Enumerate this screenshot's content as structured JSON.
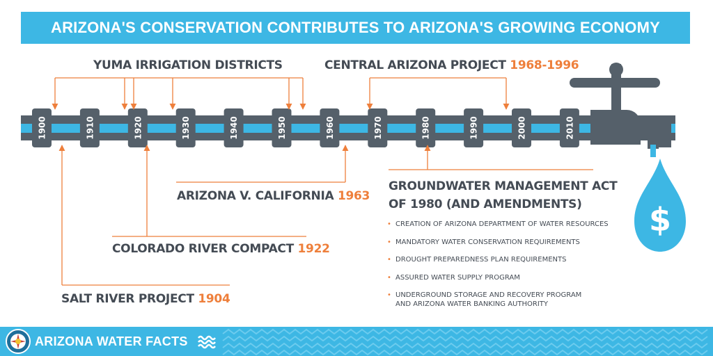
{
  "title": "ARIZONA'S CONSERVATION CONTRIBUTES TO ARIZONA'S GROWING ECONOMY",
  "decades": [
    "1900",
    "1910",
    "1920",
    "1930",
    "1940",
    "1950",
    "1960",
    "1970",
    "1980",
    "1990",
    "2000",
    "2010"
  ],
  "events": {
    "yuma": {
      "label": "YUMA IRRIGATION DISTRICTS"
    },
    "cap": {
      "label": "CENTRAL ARIZONA PROJECT ",
      "years": "1968-1996"
    },
    "az_v_ca": {
      "label": "ARIZONA V. CALIFORNIA ",
      "year": "1963"
    },
    "colorado": {
      "label": "COLORADO RIVER COMPACT ",
      "year": "1922"
    },
    "salt_river": {
      "label": "SALT RIVER PROJECT ",
      "year": "1904"
    },
    "groundwater": {
      "title_line1": "GROUNDWATER MANAGEMENT ACT",
      "title_line2": "OF 1980 (AND AMENDMENTS)",
      "items": [
        "CREATION OF ARIZONA DEPARTMENT OF WATER RESOURCES",
        "MANDATORY WATER CONSERVATION REQUIREMENTS",
        "DROUGHT PREPAREDNESS PLAN REQUIREMENTS",
        "ASSURED WATER SUPPLY PROGRAM",
        "UNDERGROUND STORAGE AND RECOVERY PROGRAM\nAND ARIZONA WATER BANKING AUTHORITY"
      ]
    }
  },
  "footer": {
    "brand": "ARIZONA WATER FACTS"
  },
  "colors": {
    "blue": "#3db7e4",
    "pipe": "#55606a",
    "orange": "#ee7f3b",
    "text": "#444b54"
  }
}
